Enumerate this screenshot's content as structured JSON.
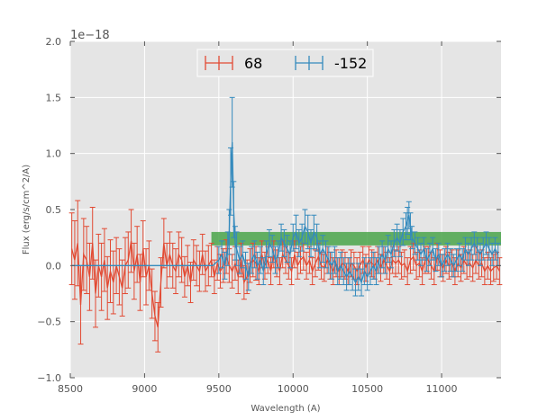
{
  "chart_data": {
    "type": "line",
    "xlabel": "Wavelength (A)",
    "ylabel": "Flux (erg/s/cm^2/A)",
    "offset_text": "1e−18",
    "xlim": [
      8500,
      11400
    ],
    "ylim": [
      -1.0,
      2.0
    ],
    "y_scale_exponent": -18,
    "x_ticks": [
      8500,
      9000,
      9500,
      10000,
      10500,
      11000
    ],
    "x_tick_labels": [
      "8500",
      "9000",
      "9500",
      "10000",
      "10500",
      "11000"
    ],
    "y_ticks": [
      -1.0,
      -0.5,
      0.0,
      0.5,
      1.0,
      1.5,
      2.0
    ],
    "y_tick_labels": [
      "−1.0",
      "−0.5",
      "0.0",
      "0.5",
      "1.0",
      "1.5",
      "2.0"
    ],
    "grid": true,
    "legend_position": "top-center",
    "band": {
      "x": [
        9450,
        11400
      ],
      "y": [
        0.18,
        0.3
      ],
      "color": "#4aa54a"
    },
    "series": [
      {
        "name": "68",
        "color": "#e24a33",
        "x": [
          8510,
          8530,
          8550,
          8570,
          8590,
          8610,
          8630,
          8650,
          8670,
          8690,
          8710,
          8730,
          8750,
          8770,
          8790,
          8810,
          8830,
          8850,
          8870,
          8890,
          8910,
          8930,
          8950,
          8970,
          8990,
          9010,
          9030,
          9050,
          9070,
          9090,
          9110,
          9130,
          9150,
          9170,
          9190,
          9210,
          9230,
          9250,
          9270,
          9290,
          9310,
          9330,
          9350,
          9370,
          9390,
          9410,
          9430,
          9450,
          9470,
          9490,
          9510,
          9530,
          9550,
          9570,
          9590,
          9610,
          9630,
          9650,
          9670,
          9690,
          9710,
          9730,
          9750,
          9770,
          9790,
          9810,
          9830,
          9850,
          9870,
          9890,
          9910,
          9930,
          9950,
          9970,
          9990,
          10010,
          10030,
          10050,
          10070,
          10090,
          10110,
          10130,
          10150,
          10170,
          10190,
          10210,
          10230,
          10250,
          10270,
          10290,
          10310,
          10330,
          10350,
          10370,
          10390,
          10410,
          10430,
          10450,
          10470,
          10490,
          10510,
          10530,
          10550,
          10570,
          10590,
          10610,
          10630,
          10650,
          10670,
          10690,
          10710,
          10730,
          10750,
          10770,
          10790,
          10810,
          10830,
          10850,
          10870,
          10890,
          10910,
          10930,
          10950,
          10970,
          10990,
          11010,
          11030,
          11050,
          11070,
          11090,
          11110,
          11130,
          11150,
          11170,
          11190,
          11210,
          11230,
          11250,
          11270,
          11290,
          11310,
          11330,
          11350,
          11370,
          11390
        ],
        "y": [
          0.15,
          0.05,
          0.2,
          -0.35,
          0.1,
          0.05,
          -0.1,
          0.2,
          -0.25,
          0.0,
          -0.1,
          0.05,
          -0.2,
          -0.05,
          -0.15,
          0.0,
          -0.1,
          -0.2,
          0.0,
          0.05,
          0.22,
          -0.05,
          0.1,
          -0.15,
          0.15,
          -0.1,
          0.0,
          -0.25,
          -0.45,
          -0.55,
          -0.15,
          0.2,
          0.0,
          0.1,
          0.0,
          -0.05,
          0.1,
          0.05,
          -0.1,
          0.0,
          -0.15,
          0.05,
          0.0,
          -0.05,
          0.1,
          -0.05,
          0.0,
          0.05,
          -0.1,
          0.02,
          -0.05,
          0.0,
          0.08,
          0.0,
          -0.05,
          0.02,
          -0.1,
          0.05,
          -0.15,
          -0.1,
          0.0,
          0.05,
          0.02,
          -0.05,
          0.1,
          0.0,
          0.05,
          -0.05,
          0.1,
          0.02,
          -0.05,
          0.1,
          0.05,
          0.0,
          -0.05,
          0.1,
          0.0,
          0.05,
          0.08,
          0.0,
          0.05,
          -0.05,
          0.02,
          0.08,
          0.0,
          -0.02,
          0.05,
          0.0,
          -0.05,
          0.02,
          -0.05,
          0.02,
          0.0,
          -0.05,
          0.02,
          0.0,
          -0.05,
          0.0,
          0.05,
          -0.02,
          0.05,
          0.02,
          0.0,
          0.05,
          -0.02,
          0.05,
          0.0,
          -0.05,
          0.05,
          0.02,
          0.05,
          0.0,
          0.02,
          -0.05,
          0.05,
          0.08,
          0.0,
          0.02,
          -0.05,
          0.05,
          0.05,
          0.0,
          -0.05,
          0.08,
          0.02,
          -0.02,
          0.05,
          0.0,
          0.02,
          -0.05,
          0.02,
          -0.02,
          0.05,
          0.0,
          0.02,
          -0.02,
          0.05,
          0.0,
          0.02,
          -0.05,
          0.0,
          -0.05,
          -0.02,
          0.0,
          -0.05
        ],
        "err": [
          0.32,
          0.35,
          0.38,
          0.35,
          0.32,
          0.3,
          0.3,
          0.32,
          0.3,
          0.28,
          0.3,
          0.28,
          0.28,
          0.28,
          0.28,
          0.25,
          0.25,
          0.25,
          0.25,
          0.25,
          0.28,
          0.25,
          0.25,
          0.25,
          0.25,
          0.25,
          0.22,
          0.22,
          0.22,
          0.22,
          0.22,
          0.22,
          0.2,
          0.2,
          0.2,
          0.2,
          0.2,
          0.2,
          0.18,
          0.18,
          0.18,
          0.18,
          0.18,
          0.18,
          0.18,
          0.18,
          0.18,
          0.15,
          0.15,
          0.15,
          0.15,
          0.15,
          0.15,
          0.15,
          0.15,
          0.15,
          0.15,
          0.15,
          0.15,
          0.15,
          0.15,
          0.15,
          0.15,
          0.12,
          0.12,
          0.12,
          0.12,
          0.12,
          0.12,
          0.12,
          0.12,
          0.12,
          0.12,
          0.12,
          0.12,
          0.12,
          0.12,
          0.12,
          0.12,
          0.12,
          0.12,
          0.12,
          0.12,
          0.12,
          0.12,
          0.12,
          0.12,
          0.12,
          0.12,
          0.12,
          0.12,
          0.12,
          0.12,
          0.12,
          0.12,
          0.12,
          0.12,
          0.12,
          0.12,
          0.12,
          0.12,
          0.12,
          0.12,
          0.12,
          0.12,
          0.12,
          0.12,
          0.12,
          0.12,
          0.12,
          0.12,
          0.12,
          0.12,
          0.12,
          0.12,
          0.12,
          0.12,
          0.12,
          0.12,
          0.12,
          0.12,
          0.12,
          0.12,
          0.12,
          0.12,
          0.12,
          0.12,
          0.12,
          0.12,
          0.12,
          0.12,
          0.12,
          0.12,
          0.12,
          0.12,
          0.12,
          0.12,
          0.12,
          0.12,
          0.12,
          0.12,
          0.12,
          0.12,
          0.12,
          0.12
        ]
      },
      {
        "name": "-152",
        "color": "#348abd",
        "x": [
          8510,
          8560,
          8610,
          8660,
          8710,
          8760,
          8810,
          8860,
          8910,
          8960,
          9010,
          9060,
          9110,
          9160,
          9210,
          9260,
          9310,
          9360,
          9410,
          9460,
          9500,
          9520,
          9540,
          9560,
          9570,
          9580,
          9590,
          9600,
          9610,
          9620,
          9640,
          9660,
          9680,
          9700,
          9720,
          9740,
          9760,
          9780,
          9800,
          9820,
          9840,
          9860,
          9880,
          9900,
          9920,
          9940,
          9960,
          9980,
          10000,
          10020,
          10040,
          10060,
          10080,
          10100,
          10120,
          10140,
          10160,
          10180,
          10200,
          10220,
          10240,
          10260,
          10280,
          10300,
          10320,
          10340,
          10360,
          10380,
          10400,
          10420,
          10440,
          10460,
          10480,
          10500,
          10520,
          10540,
          10560,
          10580,
          10600,
          10620,
          10640,
          10660,
          10680,
          10700,
          10720,
          10740,
          10760,
          10770,
          10780,
          10790,
          10800,
          10820,
          10840,
          10860,
          10880,
          10900,
          10920,
          10940,
          10960,
          10980,
          11000,
          11020,
          11040,
          11060,
          11080,
          11100,
          11120,
          11140,
          11160,
          11180,
          11200,
          11220,
          11240,
          11260,
          11280,
          11300,
          11320,
          11340,
          11360,
          11380
        ],
        "y": [
          0.0,
          0.0,
          0.0,
          0.0,
          0.0,
          0.0,
          0.0,
          0.0,
          0.0,
          0.0,
          0.0,
          0.0,
          0.0,
          0.0,
          0.0,
          0.0,
          0.0,
          0.0,
          0.0,
          0.0,
          0.05,
          0.1,
          0.0,
          0.15,
          0.3,
          0.75,
          1.1,
          0.5,
          0.2,
          0.15,
          0.05,
          0.1,
          0.0,
          -0.1,
          0.05,
          0.1,
          0.0,
          0.05,
          -0.05,
          0.1,
          0.2,
          0.15,
          0.05,
          0.1,
          0.25,
          0.2,
          0.15,
          0.1,
          0.25,
          0.3,
          0.2,
          0.25,
          0.35,
          0.3,
          0.2,
          0.3,
          0.25,
          0.1,
          0.15,
          0.1,
          0.05,
          0.0,
          0.05,
          -0.05,
          0.0,
          -0.05,
          -0.1,
          -0.05,
          -0.1,
          -0.15,
          -0.1,
          -0.15,
          -0.05,
          -0.1,
          -0.05,
          0.0,
          -0.05,
          0.05,
          0.1,
          0.05,
          0.15,
          0.1,
          0.2,
          0.25,
          0.2,
          0.3,
          0.35,
          0.4,
          0.45,
          0.35,
          0.25,
          0.2,
          0.15,
          0.1,
          0.15,
          0.05,
          0.1,
          0.15,
          0.05,
          0.1,
          0.0,
          0.05,
          0.1,
          0.05,
          0.0,
          0.05,
          0.1,
          0.05,
          0.15,
          0.1,
          0.15,
          0.2,
          0.15,
          0.1,
          0.15,
          0.2,
          0.15,
          0.1,
          0.15,
          0.1
        ],
        "err": [
          0.0,
          0.0,
          0.0,
          0.0,
          0.0,
          0.0,
          0.0,
          0.0,
          0.0,
          0.0,
          0.0,
          0.0,
          0.0,
          0.0,
          0.0,
          0.0,
          0.0,
          0.0,
          0.0,
          0.0,
          0.12,
          0.12,
          0.12,
          0.15,
          0.2,
          0.3,
          0.4,
          0.25,
          0.15,
          0.15,
          0.12,
          0.12,
          0.12,
          0.12,
          0.12,
          0.12,
          0.12,
          0.12,
          0.12,
          0.12,
          0.12,
          0.12,
          0.12,
          0.12,
          0.12,
          0.12,
          0.12,
          0.12,
          0.12,
          0.15,
          0.12,
          0.12,
          0.15,
          0.15,
          0.12,
          0.15,
          0.12,
          0.12,
          0.12,
          0.12,
          0.12,
          0.12,
          0.12,
          0.12,
          0.12,
          0.12,
          0.12,
          0.12,
          0.12,
          0.12,
          0.12,
          0.12,
          0.12,
          0.12,
          0.12,
          0.12,
          0.12,
          0.12,
          0.12,
          0.12,
          0.12,
          0.12,
          0.12,
          0.12,
          0.12,
          0.12,
          0.12,
          0.12,
          0.12,
          0.12,
          0.1,
          0.1,
          0.1,
          0.1,
          0.1,
          0.1,
          0.1,
          0.1,
          0.1,
          0.1,
          0.1,
          0.1,
          0.1,
          0.1,
          0.1,
          0.1,
          0.1,
          0.1,
          0.1,
          0.1,
          0.1,
          0.1,
          0.1,
          0.1,
          0.1,
          0.1,
          0.1,
          0.1,
          0.1,
          0.1
        ]
      }
    ]
  }
}
